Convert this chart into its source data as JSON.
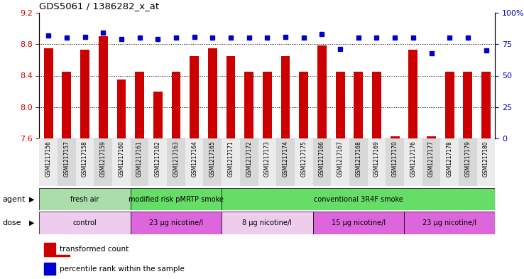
{
  "title": "GDS5061 / 1386282_x_at",
  "samples": [
    "GSM1217156",
    "GSM1217157",
    "GSM1217158",
    "GSM1217159",
    "GSM1217160",
    "GSM1217161",
    "GSM1217162",
    "GSM1217163",
    "GSM1217164",
    "GSM1217165",
    "GSM1217171",
    "GSM1217172",
    "GSM1217173",
    "GSM1217174",
    "GSM1217175",
    "GSM1217166",
    "GSM1217167",
    "GSM1217168",
    "GSM1217169",
    "GSM1217170",
    "GSM1217176",
    "GSM1217177",
    "GSM1217178",
    "GSM1217179",
    "GSM1217180"
  ],
  "bar_values": [
    8.75,
    8.45,
    8.73,
    8.9,
    8.35,
    8.45,
    8.2,
    8.45,
    8.65,
    8.75,
    8.65,
    8.45,
    8.45,
    8.65,
    8.45,
    8.78,
    8.45,
    8.45,
    8.45,
    7.63,
    8.73,
    7.63,
    8.45,
    8.45,
    8.45
  ],
  "dot_values": [
    82,
    80,
    81,
    84,
    79,
    80,
    79,
    80,
    81,
    80,
    80,
    80,
    80,
    81,
    80,
    83,
    71,
    80,
    80,
    80,
    80,
    68,
    80,
    80,
    70
  ],
  "ylim_left": [
    7.6,
    9.2
  ],
  "ylim_right": [
    0,
    100
  ],
  "yticks_left": [
    7.6,
    8.0,
    8.4,
    8.8,
    9.2
  ],
  "yticks_right": [
    0,
    25,
    50,
    75,
    100
  ],
  "bar_color": "#cc0000",
  "dot_color": "#0000cc",
  "agent_groups": [
    {
      "label": "fresh air",
      "start": 0,
      "end": 5,
      "color": "#aaddaa"
    },
    {
      "label": "modified risk pMRTP smoke",
      "start": 5,
      "end": 10,
      "color": "#66dd66"
    },
    {
      "label": "conventional 3R4F smoke",
      "start": 10,
      "end": 25,
      "color": "#66dd66"
    }
  ],
  "dose_groups": [
    {
      "label": "control",
      "start": 0,
      "end": 5,
      "color": "#eeccee"
    },
    {
      "label": "23 μg nicotine/l",
      "start": 5,
      "end": 10,
      "color": "#dd66dd"
    },
    {
      "label": "8 μg nicotine/l",
      "start": 10,
      "end": 15,
      "color": "#eeccee"
    },
    {
      "label": "15 μg nicotine/l",
      "start": 15,
      "end": 20,
      "color": "#dd66dd"
    },
    {
      "label": "23 μg nicotine/l",
      "start": 20,
      "end": 25,
      "color": "#dd66dd"
    }
  ],
  "legend_bar_label": "transformed count",
  "legend_dot_label": "percentile rank within the sample",
  "grid_lines": [
    8.0,
    8.4,
    8.8
  ],
  "bar_width": 0.5
}
